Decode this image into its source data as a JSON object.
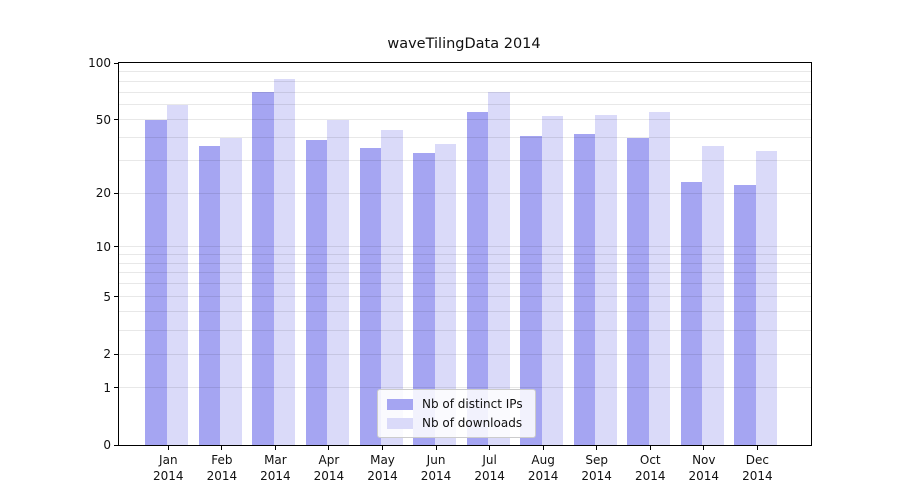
{
  "chart_data": {
    "type": "bar",
    "title": "waveTilingData 2014",
    "categories": [
      {
        "month": "Jan",
        "year": "2014"
      },
      {
        "month": "Feb",
        "year": "2014"
      },
      {
        "month": "Mar",
        "year": "2014"
      },
      {
        "month": "Apr",
        "year": "2014"
      },
      {
        "month": "May",
        "year": "2014"
      },
      {
        "month": "Jun",
        "year": "2014"
      },
      {
        "month": "Jul",
        "year": "2014"
      },
      {
        "month": "Aug",
        "year": "2014"
      },
      {
        "month": "Sep",
        "year": "2014"
      },
      {
        "month": "Oct",
        "year": "2014"
      },
      {
        "month": "Nov",
        "year": "2014"
      },
      {
        "month": "Dec",
        "year": "2014"
      }
    ],
    "series": [
      {
        "name": "Nb of distinct IPs",
        "color": "#a5a5f2",
        "values": [
          50,
          36,
          70,
          39,
          35,
          33,
          55,
          41,
          42,
          40,
          23,
          22
        ]
      },
      {
        "name": "Nb of downloads",
        "color": "#dadaf9",
        "values": [
          60,
          40,
          82,
          50,
          44,
          37,
          70,
          52,
          53,
          55,
          36,
          34
        ]
      }
    ],
    "y_scale": "symlog-log1p",
    "ylim": [
      0,
      100
    ],
    "y_ticks": [
      0,
      1,
      2,
      5,
      10,
      20,
      50,
      100
    ],
    "y_gridlines": [
      1,
      2,
      3,
      4,
      5,
      6,
      7,
      8,
      9,
      10,
      20,
      30,
      40,
      50,
      60,
      70,
      80,
      90
    ],
    "grid": true,
    "legend_position": "lower center"
  },
  "colors": {
    "background": "#ffffff",
    "spine": "#000000",
    "gridline_rgba": "rgba(0,0,0,0.09)",
    "legend_border": "#cccccc",
    "text": "#111111"
  }
}
